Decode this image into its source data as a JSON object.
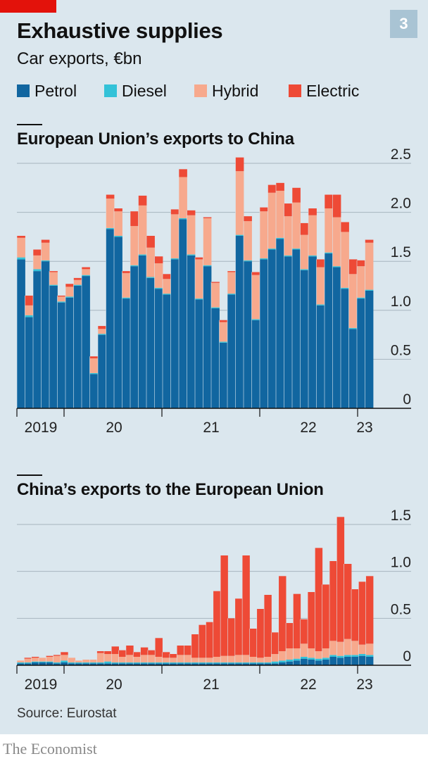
{
  "header": {
    "title": "Exhaustive supplies",
    "subtitle": "Car exports, €bn",
    "badge": "3"
  },
  "legend": [
    {
      "label": "Petrol",
      "color": "#1166a0"
    },
    {
      "label": "Diesel",
      "color": "#33c2d8"
    },
    {
      "label": "Hybrid",
      "color": "#f7a98d"
    },
    {
      "label": "Electric",
      "color": "#ee4a36"
    }
  ],
  "source": "Source: Eurostat",
  "brand": "The Economist",
  "chart_data": [
    {
      "type": "bar",
      "stacked": true,
      "title": "European Union’s exports to China",
      "x_tick_labels": [
        "2019",
        "20",
        "21",
        "22",
        "23"
      ],
      "ylim": [
        0,
        2.5
      ],
      "y_ticks": [
        0,
        0.5,
        1.0,
        1.5,
        2.0,
        2.5
      ],
      "y_tick_labels": [
        "0",
        "0.5",
        "1.0",
        "1.5",
        "2.0",
        "2.5"
      ],
      "grid": true,
      "series": [
        {
          "name": "Petrol",
          "values": [
            1.52,
            0.93,
            1.4,
            1.5,
            1.25,
            1.08,
            1.13,
            1.25,
            1.35,
            0.35,
            0.75,
            1.83,
            1.75,
            1.12,
            1.45,
            1.56,
            1.33,
            1.22,
            1.16,
            1.52,
            1.93,
            1.56,
            1.11,
            1.45,
            1.02,
            0.67,
            1.16,
            1.76,
            1.5,
            0.9,
            1.52,
            1.62,
            1.73,
            1.55,
            1.62,
            1.41,
            1.55,
            1.05,
            1.58,
            1.44,
            1.22,
            0.81,
            1.12,
            1.2
          ]
        },
        {
          "name": "Diesel",
          "values": [
            0.02,
            0.02,
            0.02,
            0.01,
            0.01,
            0.01,
            0.01,
            0.01,
            0.01,
            0.01,
            0.01,
            0.01,
            0.01,
            0.01,
            0.01,
            0.01,
            0.01,
            0.01,
            0.01,
            0.01,
            0.01,
            0.01,
            0.01,
            0.01,
            0.01,
            0.01,
            0.01,
            0.01,
            0.01,
            0.01,
            0.01,
            0.01,
            0.01,
            0.01,
            0.01,
            0.01,
            0.01,
            0.01,
            0.01,
            0.01,
            0.01,
            0.01,
            0.01,
            0.01
          ]
        },
        {
          "name": "Hybrid",
          "values": [
            0.2,
            0.1,
            0.14,
            0.18,
            0.13,
            0.05,
            0.1,
            0.05,
            0.06,
            0.15,
            0.05,
            0.3,
            0.25,
            0.25,
            0.4,
            0.5,
            0.3,
            0.25,
            0.15,
            0.45,
            0.42,
            0.4,
            0.4,
            0.48,
            0.25,
            0.2,
            0.22,
            0.65,
            0.4,
            0.45,
            0.48,
            0.57,
            0.48,
            0.4,
            0.47,
            0.35,
            0.41,
            0.38,
            0.45,
            0.5,
            0.57,
            0.55,
            0.32,
            0.48
          ]
        },
        {
          "name": "Electric",
          "values": [
            0.02,
            0.1,
            0.06,
            0.03,
            0.01,
            0.01,
            0.03,
            0.02,
            0.02,
            0.02,
            0.03,
            0.04,
            0.03,
            0.02,
            0.15,
            0.1,
            0.12,
            0.07,
            0.05,
            0.05,
            0.08,
            0.05,
            0.02,
            0.01,
            0.01,
            0.02,
            0.01,
            0.14,
            0.05,
            0.03,
            0.04,
            0.08,
            0.08,
            0.13,
            0.15,
            0.12,
            0.07,
            0.08,
            0.14,
            0.23,
            0.1,
            0.15,
            0.06,
            0.03
          ]
        }
      ]
    },
    {
      "type": "bar",
      "stacked": true,
      "title": "China’s exports to the European Union",
      "x_tick_labels": [
        "2019",
        "20",
        "21",
        "22",
        "23"
      ],
      "ylim": [
        0,
        1.5
      ],
      "y_ticks": [
        0,
        0.5,
        1.0,
        1.5
      ],
      "y_tick_labels": [
        "0",
        "0.5",
        "1.0",
        "1.5"
      ],
      "grid": true,
      "series": [
        {
          "name": "Petrol",
          "values": [
            0.02,
            0.02,
            0.03,
            0.03,
            0.03,
            0.02,
            0.03,
            0.02,
            0.02,
            0.02,
            0.02,
            0.02,
            0.02,
            0.02,
            0.02,
            0.02,
            0.02,
            0.02,
            0.02,
            0.02,
            0.02,
            0.02,
            0.02,
            0.02,
            0.02,
            0.02,
            0.02,
            0.02,
            0.02,
            0.02,
            0.02,
            0.02,
            0.02,
            0.02,
            0.02,
            0.02,
            0.03,
            0.04,
            0.05,
            0.07,
            0.06,
            0.05,
            0.06,
            0.09,
            0.08,
            0.09,
            0.09,
            0.1,
            0.09
          ]
        },
        {
          "name": "Diesel",
          "values": [
            0.01,
            0.01,
            0.01,
            0.01,
            0.01,
            0.01,
            0.02,
            0.01,
            0.01,
            0.01,
            0.01,
            0.01,
            0.02,
            0.01,
            0.01,
            0.01,
            0.01,
            0.01,
            0.01,
            0.01,
            0.01,
            0.01,
            0.01,
            0.01,
            0.01,
            0.01,
            0.01,
            0.01,
            0.01,
            0.01,
            0.01,
            0.01,
            0.01,
            0.01,
            0.01,
            0.02,
            0.02,
            0.02,
            0.02,
            0.02,
            0.02,
            0.02,
            0.02,
            0.02,
            0.02,
            0.02,
            0.02,
            0.02,
            0.02
          ]
        },
        {
          "name": "Hybrid",
          "values": [
            0.02,
            0.04,
            0.04,
            0.04,
            0.05,
            0.07,
            0.06,
            0.05,
            0.02,
            0.03,
            0.03,
            0.1,
            0.08,
            0.09,
            0.06,
            0.08,
            0.06,
            0.08,
            0.08,
            0.06,
            0.05,
            0.05,
            0.08,
            0.08,
            0.05,
            0.05,
            0.05,
            0.06,
            0.07,
            0.07,
            0.08,
            0.08,
            0.06,
            0.05,
            0.06,
            0.08,
            0.1,
            0.12,
            0.11,
            0.14,
            0.1,
            0.08,
            0.1,
            0.15,
            0.15,
            0.17,
            0.15,
            0.1,
            0.12
          ]
        },
        {
          "name": "Electric",
          "values": [
            0.0,
            0.01,
            0.01,
            0.0,
            0.01,
            0.01,
            0.03,
            0.0,
            0.0,
            0.0,
            0.0,
            0.02,
            0.03,
            0.08,
            0.07,
            0.1,
            0.05,
            0.08,
            0.05,
            0.2,
            0.06,
            0.04,
            0.1,
            0.1,
            0.25,
            0.35,
            0.38,
            0.7,
            1.07,
            0.4,
            0.6,
            1.06,
            0.3,
            0.52,
            0.66,
            0.23,
            0.8,
            0.27,
            0.58,
            0.26,
            0.6,
            1.1,
            0.68,
            0.85,
            1.33,
            0.8,
            0.55,
            0.67,
            0.72
          ]
        }
      ]
    }
  ]
}
